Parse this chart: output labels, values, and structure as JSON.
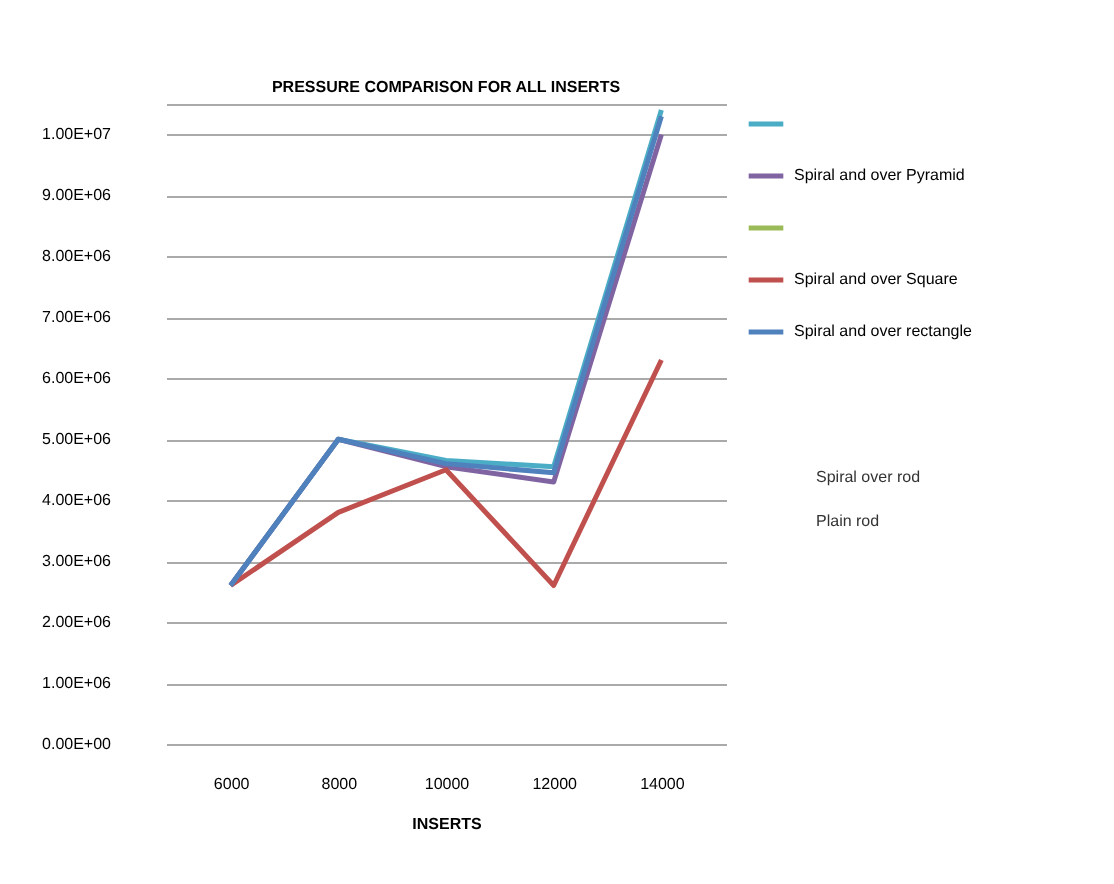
{
  "chart_data": {
    "type": "line",
    "title": "PRESSURE COMPARISON  FOR ALL INSERTS",
    "xlabel": "INSERTS",
    "categories": [
      "6000",
      "8000",
      "10000",
      "12000",
      "14000"
    ],
    "ylim": [
      0,
      10500000
    ],
    "yticks": [
      {
        "value": 0,
        "label": "0.00E+00"
      },
      {
        "value": 1000000,
        "label": "1.00E+06"
      },
      {
        "value": 2000000,
        "label": "2.00E+06"
      },
      {
        "value": 3000000,
        "label": "3.00E+06"
      },
      {
        "value": 4000000,
        "label": "4.00E+06"
      },
      {
        "value": 5000000,
        "label": "5.00E+06"
      },
      {
        "value": 6000000,
        "label": "6.00E+06"
      },
      {
        "value": 7000000,
        "label": "7.00E+06"
      },
      {
        "value": 8000000,
        "label": "8.00E+06"
      },
      {
        "value": 9000000,
        "label": "9.00E+06"
      },
      {
        "value": 10000000,
        "label": "1.00E+07"
      },
      {
        "value": 10500000,
        "label": null
      }
    ],
    "grid": "y",
    "legend": "right",
    "series": [
      {
        "color": "#4bacc6",
        "values": [
          2600000,
          5000000,
          4650000,
          4550000,
          10400000
        ]
      },
      {
        "name": "Spiral and over Pyramid",
        "color": "#8064a2",
        "values": [
          2600000,
          5000000,
          4550000,
          4300000,
          10000000
        ]
      },
      {
        "color": "#9bbb59",
        "values": [
          null,
          null,
          null,
          null,
          null
        ]
      },
      {
        "name": "Spiral and over Square",
        "color": "#c0504d",
        "values": [
          2600000,
          3800000,
          4500000,
          2600000,
          6300000
        ]
      },
      {
        "name": "Spiral and over rectangle",
        "color": "#4f81bd",
        "values": [
          2600000,
          5000000,
          4600000,
          4450000,
          10300000
        ]
      }
    ],
    "annotations": [
      "Spiral over rod",
      "Plain rod"
    ]
  }
}
